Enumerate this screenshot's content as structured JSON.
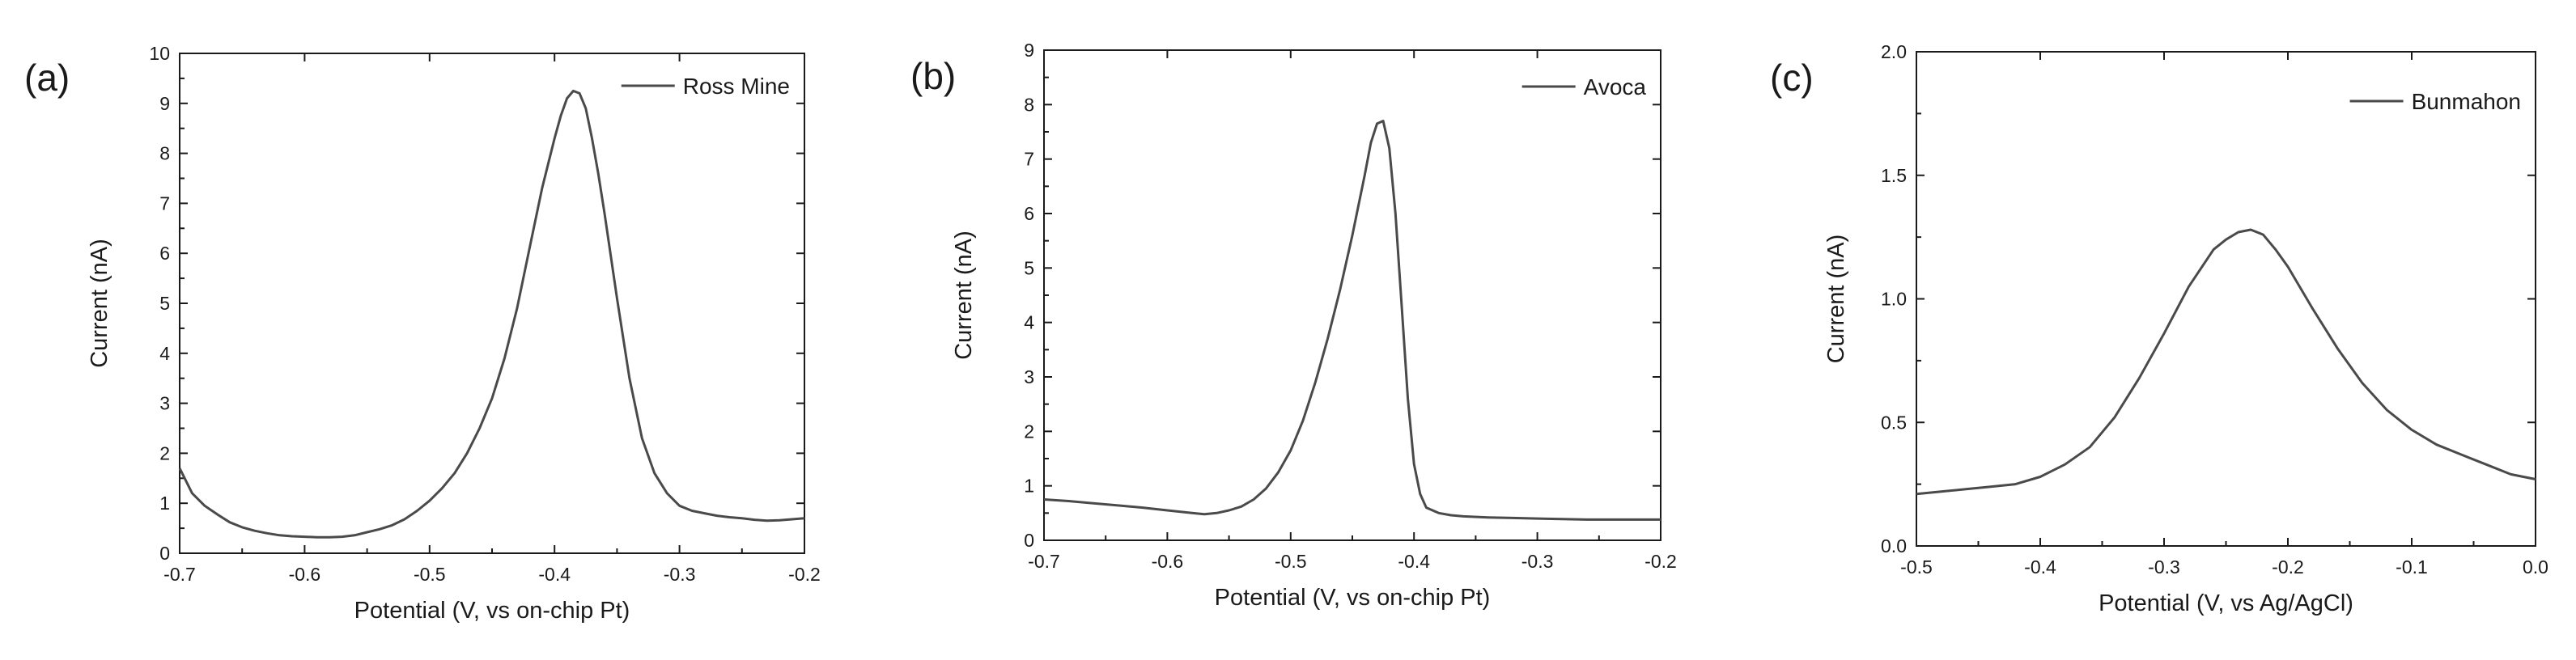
{
  "chart_data": [
    {
      "type": "line",
      "panel_label": "(a)",
      "xlabel": "Potential (V, vs on-chip Pt)",
      "ylabel": "Current (nA)",
      "xlim": [
        -0.7,
        -0.2
      ],
      "ylim": [
        0,
        10
      ],
      "xticks": [
        -0.7,
        -0.6,
        -0.5,
        -0.4,
        -0.3,
        -0.2
      ],
      "yticks": [
        0,
        1,
        2,
        3,
        4,
        5,
        6,
        7,
        8,
        9,
        10
      ],
      "xtick_labels": [
        "-0.7",
        "-0.6",
        "-0.5",
        "-0.4",
        "-0.3",
        "-0.2"
      ],
      "ytick_labels": [
        "0",
        "1",
        "2",
        "3",
        "4",
        "5",
        "6",
        "7",
        "8",
        "9",
        "10"
      ],
      "legend_position": "top-right",
      "grid": false,
      "series": [
        {
          "name": "Ross Mine",
          "x": [
            -0.7,
            -0.69,
            -0.68,
            -0.67,
            -0.66,
            -0.65,
            -0.64,
            -0.63,
            -0.62,
            -0.61,
            -0.6,
            -0.59,
            -0.58,
            -0.57,
            -0.56,
            -0.55,
            -0.54,
            -0.53,
            -0.52,
            -0.51,
            -0.5,
            -0.49,
            -0.48,
            -0.47,
            -0.46,
            -0.45,
            -0.44,
            -0.43,
            -0.42,
            -0.41,
            -0.4,
            -0.395,
            -0.39,
            -0.385,
            -0.38,
            -0.375,
            -0.37,
            -0.365,
            -0.36,
            -0.35,
            -0.34,
            -0.33,
            -0.32,
            -0.31,
            -0.3,
            -0.29,
            -0.28,
            -0.27,
            -0.26,
            -0.25,
            -0.24,
            -0.23,
            -0.22,
            -0.21,
            -0.2
          ],
          "y": [
            1.7,
            1.2,
            0.95,
            0.78,
            0.62,
            0.52,
            0.45,
            0.4,
            0.36,
            0.34,
            0.33,
            0.32,
            0.32,
            0.33,
            0.36,
            0.42,
            0.48,
            0.56,
            0.68,
            0.85,
            1.05,
            1.3,
            1.6,
            2.0,
            2.5,
            3.1,
            3.9,
            4.9,
            6.1,
            7.3,
            8.3,
            8.75,
            9.1,
            9.25,
            9.2,
            8.9,
            8.3,
            7.6,
            6.8,
            5.1,
            3.5,
            2.3,
            1.6,
            1.2,
            0.95,
            0.85,
            0.8,
            0.75,
            0.72,
            0.7,
            0.67,
            0.65,
            0.66,
            0.68,
            0.7
          ]
        }
      ]
    },
    {
      "type": "line",
      "panel_label": "(b)",
      "xlabel": "Potential (V, vs on-chip Pt)",
      "ylabel": "Current (nA)",
      "xlim": [
        -0.7,
        -0.2
      ],
      "ylim": [
        0,
        9
      ],
      "xticks": [
        -0.7,
        -0.6,
        -0.5,
        -0.4,
        -0.3,
        -0.2
      ],
      "yticks": [
        0,
        1,
        2,
        3,
        4,
        5,
        6,
        7,
        8,
        9
      ],
      "xtick_labels": [
        "-0.7",
        "-0.6",
        "-0.5",
        "-0.4",
        "-0.3",
        "-0.2"
      ],
      "ytick_labels": [
        "0",
        "1",
        "2",
        "3",
        "4",
        "5",
        "6",
        "7",
        "8",
        "9"
      ],
      "legend_position": "top-right",
      "grid": false,
      "series": [
        {
          "name": "Avoca",
          "x": [
            -0.7,
            -0.68,
            -0.66,
            -0.64,
            -0.62,
            -0.6,
            -0.58,
            -0.57,
            -0.56,
            -0.55,
            -0.54,
            -0.53,
            -0.52,
            -0.51,
            -0.5,
            -0.49,
            -0.48,
            -0.47,
            -0.46,
            -0.45,
            -0.44,
            -0.435,
            -0.43,
            -0.425,
            -0.42,
            -0.415,
            -0.41,
            -0.405,
            -0.4,
            -0.395,
            -0.39,
            -0.38,
            -0.37,
            -0.36,
            -0.34,
            -0.32,
            -0.3,
            -0.28,
            -0.26,
            -0.24,
            -0.22,
            -0.2
          ],
          "y": [
            0.75,
            0.72,
            0.68,
            0.64,
            0.6,
            0.55,
            0.5,
            0.48,
            0.5,
            0.55,
            0.62,
            0.75,
            0.95,
            1.25,
            1.65,
            2.2,
            2.9,
            3.7,
            4.6,
            5.6,
            6.7,
            7.3,
            7.65,
            7.7,
            7.2,
            6.0,
            4.3,
            2.6,
            1.4,
            0.85,
            0.6,
            0.5,
            0.46,
            0.44,
            0.42,
            0.41,
            0.4,
            0.39,
            0.38,
            0.38,
            0.38,
            0.38
          ]
        }
      ]
    },
    {
      "type": "line",
      "panel_label": "(c)",
      "xlabel": "Potential (V, vs Ag/AgCl)",
      "ylabel": "Current (nA)",
      "xlim": [
        -0.5,
        0.0
      ],
      "ylim": [
        0.0,
        2.0
      ],
      "xticks": [
        -0.5,
        -0.4,
        -0.3,
        -0.2,
        -0.1,
        0.0
      ],
      "yticks": [
        0.0,
        0.5,
        1.0,
        1.5,
        2.0
      ],
      "xtick_labels": [
        "-0.5",
        "-0.4",
        "-0.3",
        "-0.2",
        "-0.1",
        "0.0"
      ],
      "ytick_labels": [
        "0.0",
        "0.5",
        "1.0",
        "1.5",
        "2.0"
      ],
      "legend_position": "top-right",
      "grid": false,
      "series": [
        {
          "name": "Bunmahon",
          "x": [
            -0.5,
            -0.48,
            -0.46,
            -0.44,
            -0.42,
            -0.4,
            -0.38,
            -0.36,
            -0.34,
            -0.32,
            -0.3,
            -0.28,
            -0.26,
            -0.25,
            -0.24,
            -0.23,
            -0.22,
            -0.21,
            -0.2,
            -0.18,
            -0.16,
            -0.14,
            -0.12,
            -0.1,
            -0.08,
            -0.06,
            -0.04,
            -0.02,
            0.0
          ],
          "y": [
            0.21,
            0.22,
            0.23,
            0.24,
            0.25,
            0.28,
            0.33,
            0.4,
            0.52,
            0.68,
            0.86,
            1.05,
            1.2,
            1.24,
            1.27,
            1.28,
            1.26,
            1.2,
            1.13,
            0.96,
            0.8,
            0.66,
            0.55,
            0.47,
            0.41,
            0.37,
            0.33,
            0.29,
            0.27
          ]
        }
      ]
    }
  ]
}
